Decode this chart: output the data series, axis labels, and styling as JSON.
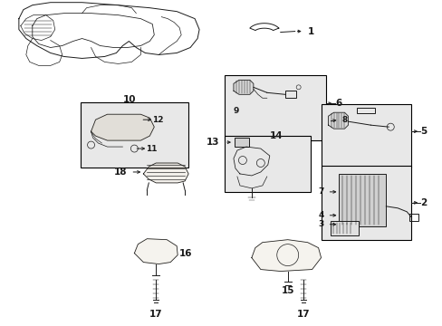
{
  "bg_color": "#ffffff",
  "line_color": "#1a1a1a",
  "fig_width": 4.89,
  "fig_height": 3.6,
  "dpi": 100,
  "box_color": "#e8e8e8",
  "box_edge": "#000000"
}
